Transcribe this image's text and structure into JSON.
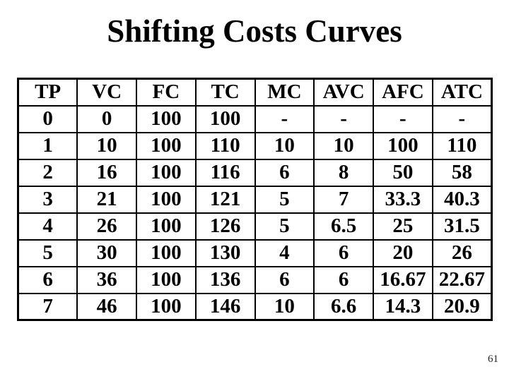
{
  "slide": {
    "title": "Shifting Costs Curves",
    "page_number": "61"
  },
  "colors": {
    "background": "#ffffff",
    "text": "#000000",
    "table_border": "#000000"
  },
  "table": {
    "columns": [
      "TP",
      "VC",
      "FC",
      "TC",
      "MC",
      "AVC",
      "AFC",
      "ATC"
    ],
    "rows": [
      [
        "0",
        "0",
        "100",
        "100",
        "-",
        "-",
        "-",
        "-"
      ],
      [
        "1",
        "10",
        "100",
        "110",
        "10",
        "10",
        "100",
        "110"
      ],
      [
        "2",
        "16",
        "100",
        "116",
        "6",
        "8",
        "50",
        "58"
      ],
      [
        "3",
        "21",
        "100",
        "121",
        "5",
        "7",
        "33.3",
        "40.3"
      ],
      [
        "4",
        "26",
        "100",
        "126",
        "5",
        "6.5",
        "25",
        "31.5"
      ],
      [
        "5",
        "30",
        "100",
        "130",
        "4",
        "6",
        "20",
        "26"
      ],
      [
        "6",
        "36",
        "100",
        "136",
        "6",
        "6",
        "16.67",
        "22.67"
      ],
      [
        "7",
        "46",
        "100",
        "146",
        "10",
        "6.6",
        "14.3",
        "20.9"
      ]
    ]
  }
}
